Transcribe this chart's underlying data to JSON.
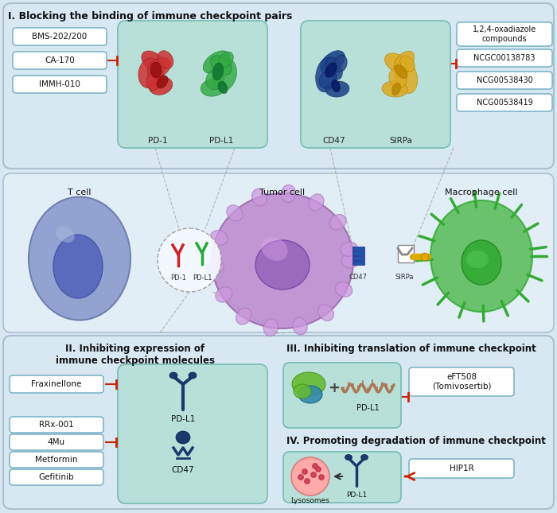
{
  "bg_color": "#d8e8f2",
  "top_panel_color": "#d8e8f2",
  "mid_panel_color": "#e2eef6",
  "bot_panel_color": "#d8e8f2",
  "teal_box_color": "#b8e0d8",
  "teal_box_edge": "#7bbfb5",
  "drug_box_color": "#ffffff",
  "drug_box_edge": "#6aaac0",
  "inhibit_color": "#cc2200",
  "section1_title": "I. Blocking the binding of immune checkpoint pairs",
  "section2_title": "II. Inhibiting expression of\nimmune checkpoint molecules",
  "section3_title": "III. Inhibiting translation of immune checkpoint",
  "section4_title": "IV. Promoting degradation of immune checkpoint",
  "pdl1_drugs": [
    "BMS-202/200",
    "CA-170",
    "IMMH-010"
  ],
  "cd47_drugs": [
    "1,2,4-oxadiazole\ncompounds",
    "NCGC00138783",
    "NCG00538430",
    "NCG00538419"
  ],
  "section2_drug1": "Fraxinellone",
  "section2_drugs2": [
    "RRx-001",
    "4Mu",
    "Metformin",
    "Gefitinib"
  ],
  "section3_drug": "eFT508\n(Tomivosertib)",
  "section4_drug": "HIP1R"
}
